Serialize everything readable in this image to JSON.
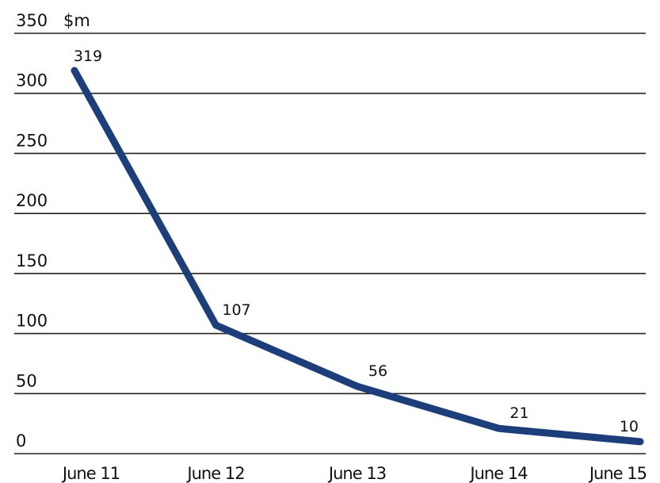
{
  "chart_data": {
    "type": "line",
    "title": "",
    "unit_label": "$m",
    "xlabel": "",
    "ylabel": "",
    "categories": [
      "June 11",
      "June 12",
      "June 13",
      "June 14",
      "June 15"
    ],
    "series": [
      {
        "values": [
          319,
          107,
          56,
          21,
          10
        ]
      }
    ],
    "data_labels": [
      "319",
      "107",
      "56",
      "21",
      "10"
    ],
    "yticks": [
      0,
      50,
      100,
      150,
      200,
      250,
      300,
      350
    ],
    "ylim": [
      0,
      350
    ],
    "grid": true,
    "legend": "none",
    "colors": {
      "series": "#1c3f7c",
      "grid": "#222222",
      "text": "#111111"
    }
  }
}
